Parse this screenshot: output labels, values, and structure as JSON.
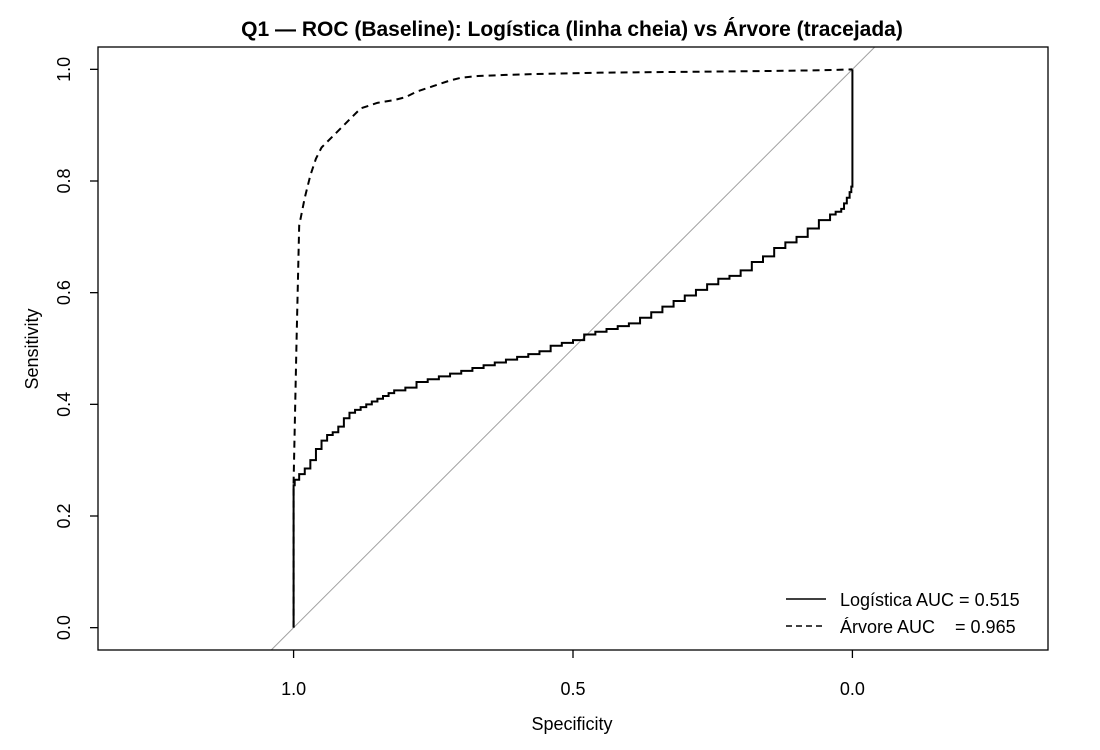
{
  "chart_data": {
    "type": "line",
    "title": "Q1 — ROC (Baseline): Logística (linha cheia) vs Árvore (tracejada)",
    "xlabel": "Specificity",
    "ylabel": "Sensitivity",
    "x_reversed": true,
    "xlim": [
      1.35,
      -0.35
    ],
    "ylim": [
      -0.04,
      1.04
    ],
    "x_ticks": [
      1.0,
      0.5,
      0.0
    ],
    "x_tick_labels": [
      "1.0",
      "0.5",
      "0.0"
    ],
    "y_ticks": [
      0.0,
      0.2,
      0.4,
      0.6,
      0.8,
      1.0
    ],
    "y_tick_labels": [
      "0.0",
      "0.2",
      "0.4",
      "0.6",
      "0.8",
      "1.0"
    ],
    "grid": false,
    "reference_line": {
      "from": [
        1,
        0
      ],
      "to": [
        0,
        1
      ],
      "color": "#a0a0a0"
    },
    "legend_position": "bottom-right",
    "legend": [
      {
        "label": "Logística AUC = 0.515",
        "line_style": "solid"
      },
      {
        "label": "Árvore AUC    = 0.965",
        "line_style": "dashed"
      }
    ],
    "series": [
      {
        "name": "Logística",
        "line_style": "solid",
        "color": "#000000",
        "x": [
          1.0,
          1.0,
          0.998,
          0.99,
          0.98,
          0.97,
          0.96,
          0.95,
          0.94,
          0.93,
          0.92,
          0.91,
          0.9,
          0.89,
          0.88,
          0.87,
          0.86,
          0.85,
          0.84,
          0.83,
          0.82,
          0.8,
          0.78,
          0.76,
          0.74,
          0.72,
          0.7,
          0.68,
          0.66,
          0.64,
          0.62,
          0.6,
          0.58,
          0.56,
          0.54,
          0.52,
          0.5,
          0.48,
          0.46,
          0.44,
          0.42,
          0.4,
          0.38,
          0.36,
          0.34,
          0.32,
          0.3,
          0.28,
          0.26,
          0.24,
          0.22,
          0.2,
          0.18,
          0.16,
          0.14,
          0.12,
          0.1,
          0.08,
          0.06,
          0.04,
          0.03,
          0.02,
          0.015,
          0.01,
          0.005,
          0.002,
          0.0,
          0.0,
          0.0
        ],
        "y": [
          0.0,
          0.2,
          0.255,
          0.265,
          0.275,
          0.285,
          0.3,
          0.32,
          0.335,
          0.345,
          0.35,
          0.36,
          0.375,
          0.385,
          0.39,
          0.395,
          0.4,
          0.405,
          0.41,
          0.415,
          0.42,
          0.425,
          0.43,
          0.44,
          0.445,
          0.45,
          0.455,
          0.46,
          0.465,
          0.47,
          0.475,
          0.48,
          0.485,
          0.49,
          0.495,
          0.505,
          0.51,
          0.515,
          0.525,
          0.53,
          0.535,
          0.54,
          0.545,
          0.555,
          0.565,
          0.575,
          0.585,
          0.595,
          0.605,
          0.615,
          0.625,
          0.63,
          0.64,
          0.655,
          0.665,
          0.68,
          0.69,
          0.7,
          0.715,
          0.73,
          0.74,
          0.745,
          0.75,
          0.76,
          0.77,
          0.78,
          0.79,
          0.8,
          1.0
        ]
      },
      {
        "name": "Árvore",
        "line_style": "dashed",
        "color": "#000000",
        "x": [
          1.0,
          1.0,
          0.995,
          0.99,
          0.98,
          0.97,
          0.96,
          0.95,
          0.93,
          0.9,
          0.88,
          0.85,
          0.82,
          0.8,
          0.78,
          0.75,
          0.72,
          0.7,
          0.67,
          0.62,
          0.55,
          0.45,
          0.35,
          0.25,
          0.15,
          0.08,
          0.03,
          0.0
        ],
        "y": [
          0.0,
          0.26,
          0.5,
          0.72,
          0.77,
          0.81,
          0.84,
          0.86,
          0.88,
          0.91,
          0.93,
          0.94,
          0.945,
          0.95,
          0.96,
          0.97,
          0.98,
          0.985,
          0.988,
          0.99,
          0.992,
          0.994,
          0.995,
          0.996,
          0.997,
          0.998,
          0.999,
          1.0
        ]
      }
    ]
  }
}
